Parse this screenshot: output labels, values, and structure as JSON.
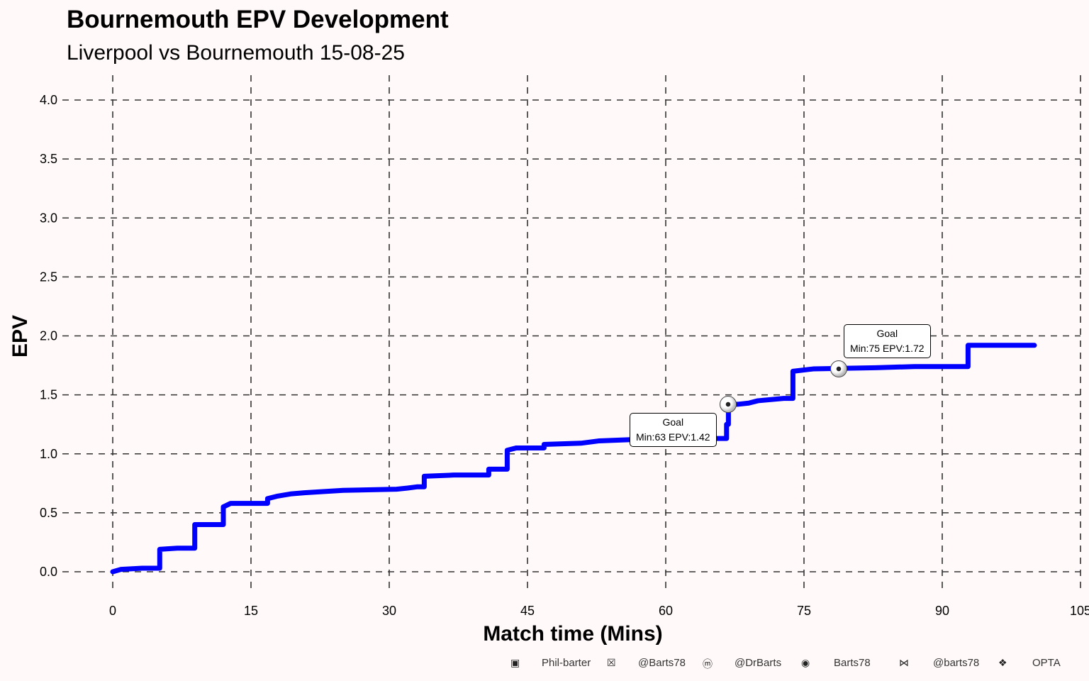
{
  "title": "Bournemouth EPV Development",
  "subtitle": "Liverpool vs Bournemouth 15-08-25",
  "chart_data": {
    "type": "line",
    "step": true,
    "xlabel": "Match time (Mins)",
    "ylabel": "EPV",
    "xlim": [
      0,
      105
    ],
    "ylim": [
      0,
      4.0
    ],
    "xticks": [
      "0",
      "15",
      "30",
      "45",
      "60",
      "75",
      "90",
      "105"
    ],
    "yticks": [
      "0.0",
      "0.5",
      "1.0",
      "1.5",
      "2.0",
      "2.5",
      "3.0",
      "3.5",
      "4.0"
    ],
    "grid": true,
    "line_color": "#0000ff",
    "series": [
      {
        "points": [
          [
            0,
            0
          ],
          [
            0.9,
            0.02
          ],
          [
            3.2,
            0.03
          ],
          [
            5.1,
            0.19
          ],
          [
            7,
            0.2
          ],
          [
            8.9,
            0.4
          ],
          [
            12,
            0.55
          ],
          [
            12.8,
            0.58
          ],
          [
            16.8,
            0.62
          ],
          [
            17.8,
            0.64
          ],
          [
            19.3,
            0.66
          ],
          [
            20.8,
            0.67
          ],
          [
            22.8,
            0.68
          ],
          [
            25,
            0.69
          ],
          [
            30.8,
            0.7
          ],
          [
            32,
            0.71
          ],
          [
            33,
            0.72
          ],
          [
            33.8,
            0.81
          ],
          [
            37,
            0.82
          ],
          [
            40.8,
            0.87
          ],
          [
            42.8,
            1.03
          ],
          [
            43.8,
            1.05
          ],
          [
            46.8,
            1.08
          ],
          [
            50.8,
            1.09
          ],
          [
            52.8,
            1.11
          ],
          [
            56.2,
            1.12
          ],
          [
            62,
            1.13
          ],
          [
            66.6,
            1.25
          ],
          [
            66.8,
            1.42
          ],
          [
            67.8,
            1.42
          ],
          [
            69,
            1.43
          ],
          [
            70,
            1.45
          ],
          [
            72.8,
            1.47
          ],
          [
            73.8,
            1.7
          ],
          [
            76,
            1.72
          ],
          [
            82.8,
            1.73
          ],
          [
            87,
            1.74
          ],
          [
            92.8,
            1.92
          ],
          [
            100,
            1.92
          ]
        ]
      }
    ],
    "annotations": [
      {
        "x": 66.8,
        "y": 1.42,
        "icon": "soccer-ball-icon",
        "title": "Goal",
        "text": "Min:63 EPV:1.42"
      },
      {
        "x": 78.8,
        "y": 1.72,
        "icon": "soccer-ball-icon",
        "title": "Goal",
        "text": "Min:75 EPV:1.72"
      }
    ]
  },
  "footer": [
    {
      "icon": "linkedin-icon",
      "text": "Phil-barter"
    },
    {
      "icon": "x-icon",
      "text": "@Barts78"
    },
    {
      "icon": "mastodon-icon",
      "text": "@DrBarts"
    },
    {
      "icon": "github-icon",
      "text": "Barts78"
    },
    {
      "icon": "bluesky-icon",
      "text": "@barts78"
    },
    {
      "icon": "dropbox-icon",
      "text": "OPTA"
    }
  ]
}
